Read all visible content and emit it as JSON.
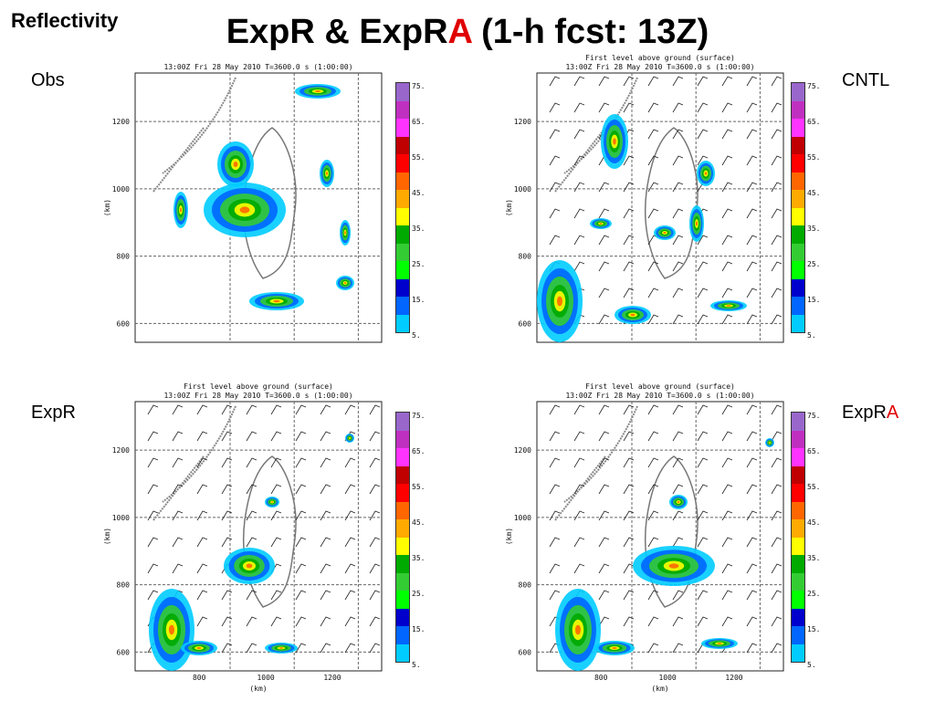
{
  "slide": {
    "corner_title": "Reflectivity",
    "title_part1": "ExpR & ExpR",
    "title_red": "A",
    "title_part2": " (1-h fcst: 13Z)"
  },
  "panels": [
    {
      "id": "obs",
      "label": "Obs",
      "label_red": "",
      "header": "",
      "time_line": "13:00Z Fri 28 May 2010     T=3600.0 s (1:00:00)",
      "yticks": [
        "1200",
        "1000",
        "800",
        "600"
      ],
      "ylabel": "(km)",
      "xticks": [],
      "xlabel": ""
    },
    {
      "id": "cntl",
      "label": "CNTL",
      "label_red": "",
      "header": "First level above ground (surface)",
      "time_line": "13:00Z Fri 28 May 2010     T=3600.0 s (1:00:00)",
      "yticks": [
        "1200",
        "1000",
        "800",
        "600"
      ],
      "ylabel": "(km)",
      "xticks": [],
      "xlabel": ""
    },
    {
      "id": "expr",
      "label": "ExpR",
      "label_red": "",
      "header": "First level above ground (surface)",
      "time_line": "13:00Z Fri 28 May 2010     T=3600.0 s (1:00:00)",
      "yticks": [
        "1200",
        "1000",
        "800",
        "600"
      ],
      "ylabel": "(km)",
      "xticks": [
        "800",
        "1000",
        "1200"
      ],
      "xlabel": "(km)"
    },
    {
      "id": "expra",
      "label": "ExpR",
      "label_red": "A",
      "header": "First level above ground (surface)",
      "time_line": "13:00Z Fri 28 May 2010     T=3600.0 s (1:00:00)",
      "yticks": [
        "1200",
        "1000",
        "800",
        "600"
      ],
      "ylabel": "(km)",
      "xticks": [
        "800",
        "1000",
        "1200"
      ],
      "xlabel": "(km)"
    }
  ],
  "colorbar": {
    "labels": [
      "75.",
      "65.",
      "55.",
      "45.",
      "35.",
      "25.",
      "15.",
      "5."
    ],
    "colors": [
      "#9966cc",
      "#c030c0",
      "#ff33ff",
      "#c00000",
      "#ff0000",
      "#ff6600",
      "#ffaa00",
      "#ffff00",
      "#00aa00",
      "#33cc33",
      "#00ff00",
      "#0000cc",
      "#0066ff",
      "#00ccff"
    ]
  }
}
